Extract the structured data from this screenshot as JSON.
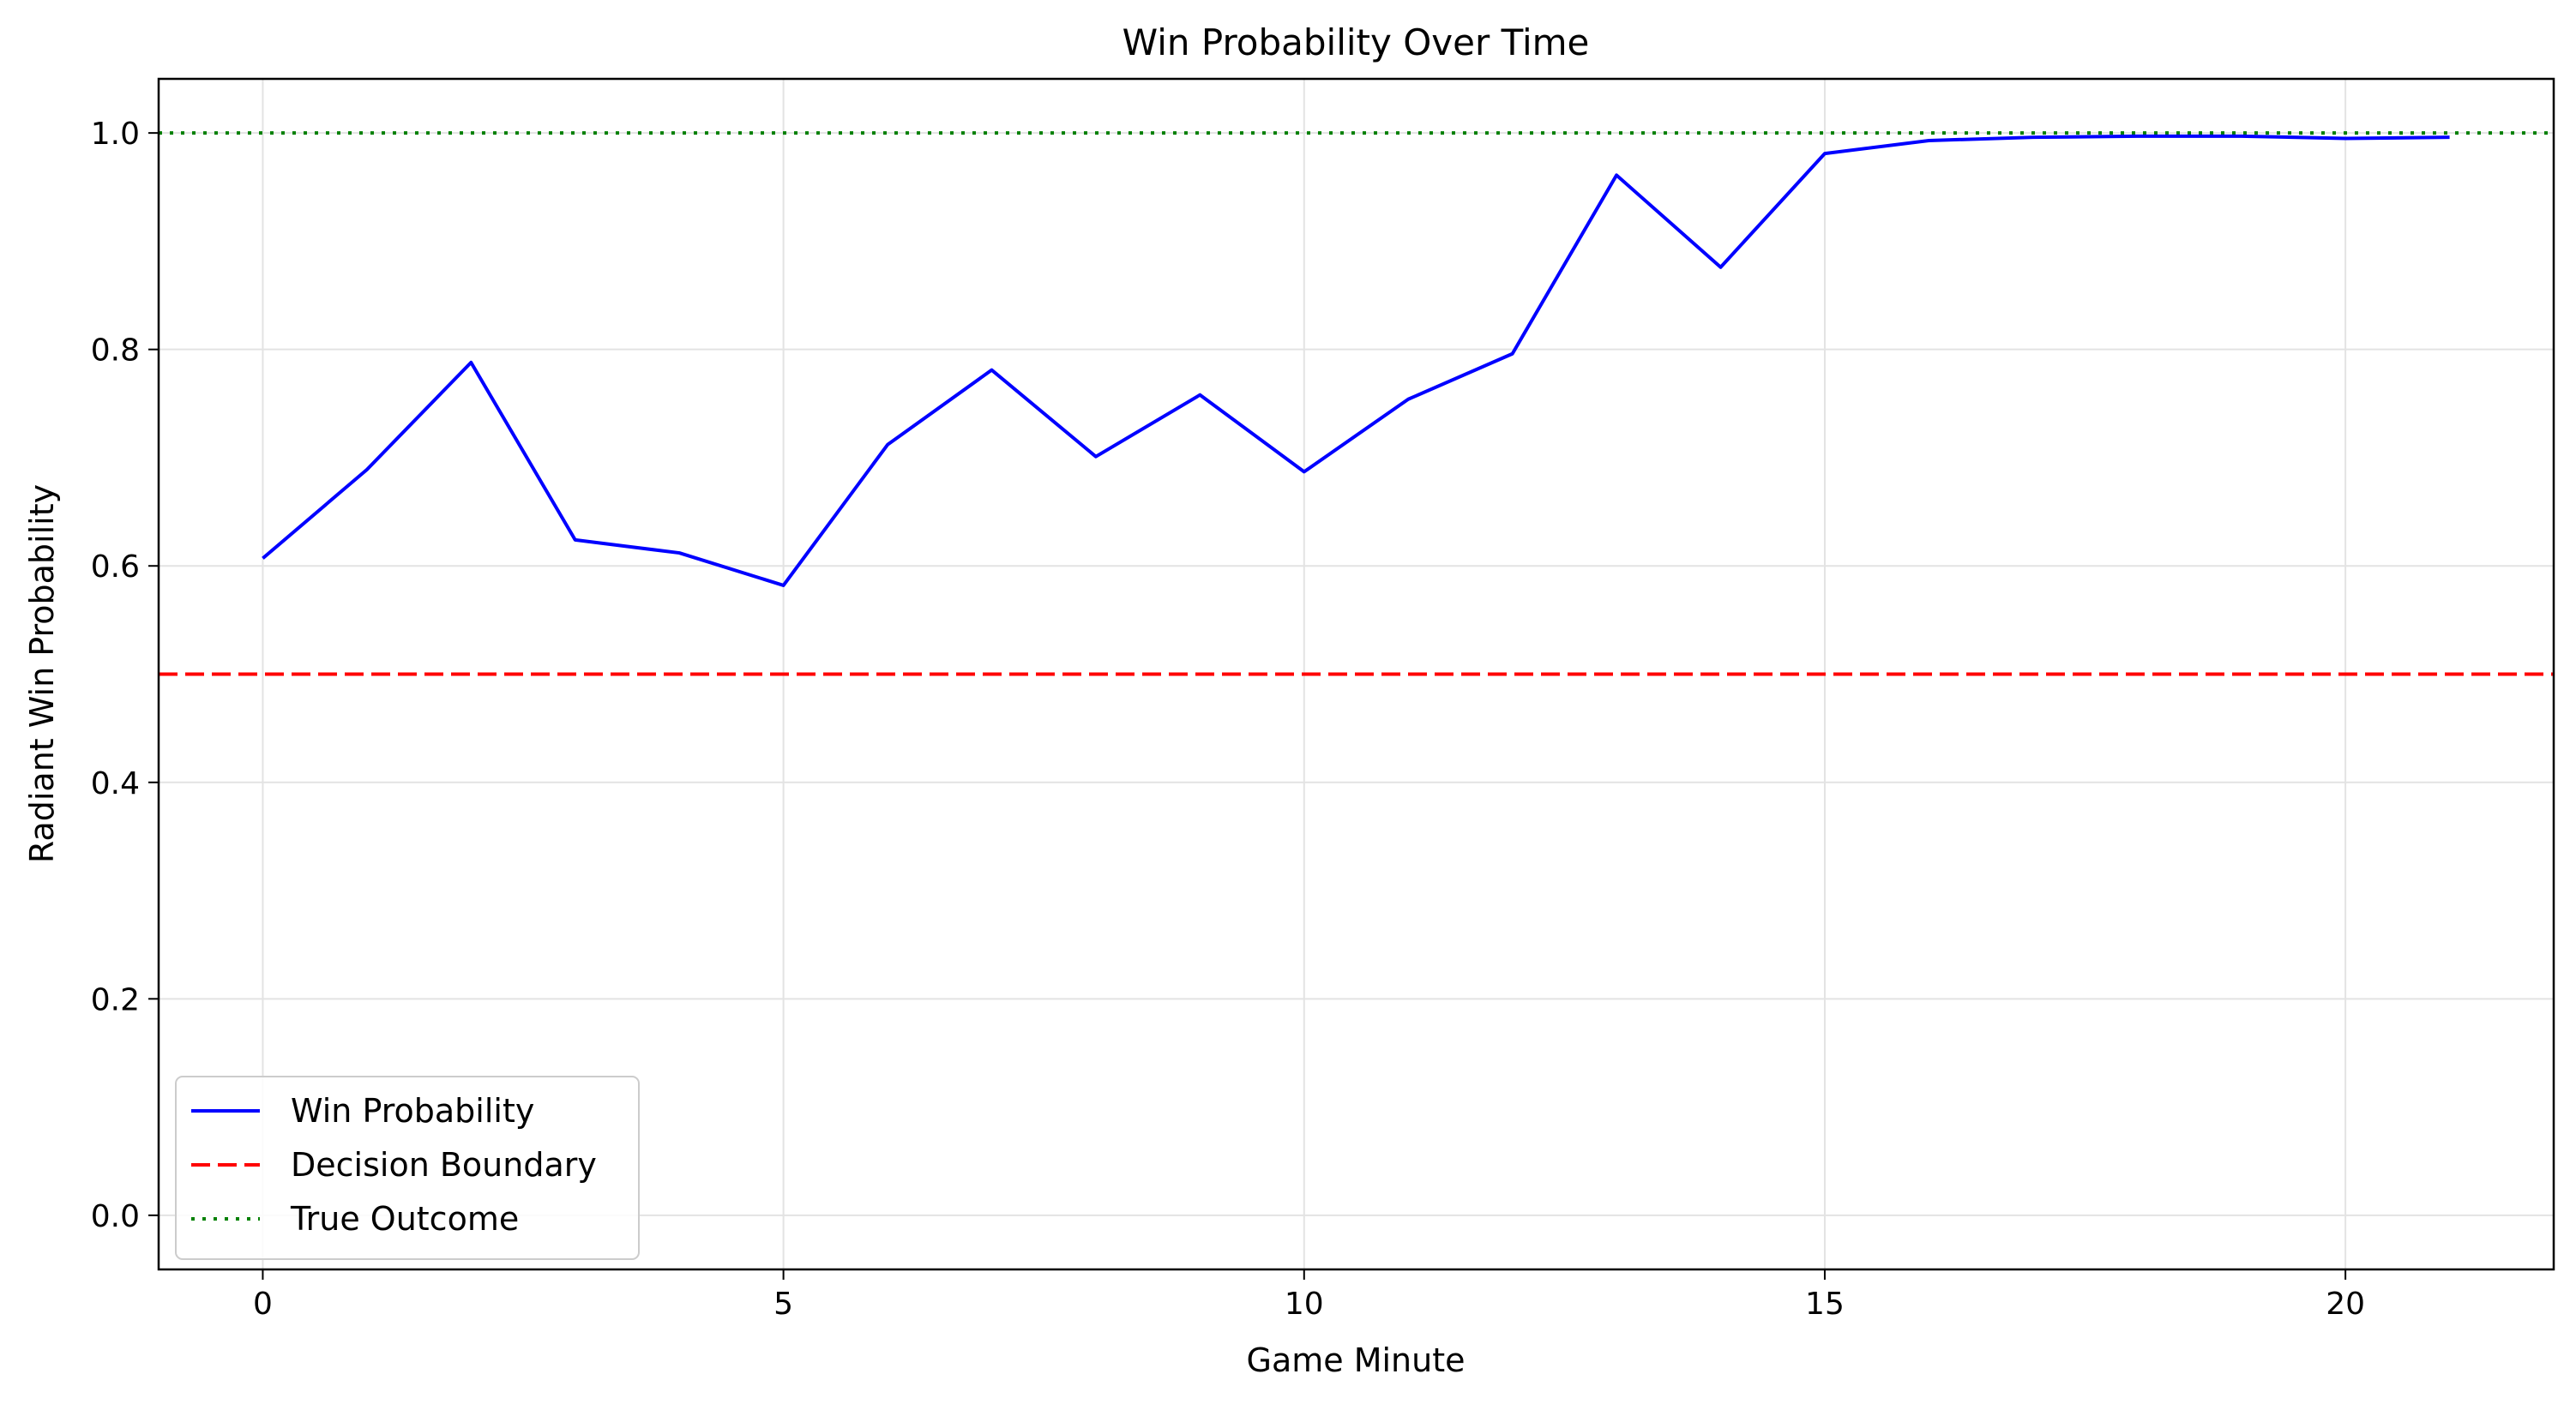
{
  "chart_data": {
    "type": "line",
    "title": "Win Probability Over Time",
    "xlabel": "Game Minute",
    "ylabel": "Radiant Win Probability",
    "xlim": [
      -1,
      22
    ],
    "ylim": [
      -0.05,
      1.05
    ],
    "xticks": [
      0,
      5,
      10,
      15,
      20
    ],
    "yticks": [
      0.0,
      0.2,
      0.4,
      0.6,
      0.8,
      1.0
    ],
    "ytick_labels": [
      "0.0",
      "0.2",
      "0.4",
      "0.6",
      "0.8",
      "1.0"
    ],
    "grid": true,
    "legend_position": "lower-left",
    "series": [
      {
        "name": "Win Probability",
        "style": "solid",
        "color": "#0000ff",
        "x": [
          0,
          1,
          2,
          3,
          4,
          5,
          6,
          7,
          8,
          9,
          10,
          11,
          12,
          13,
          14,
          15,
          16,
          17,
          18,
          19,
          20,
          21
        ],
        "values": [
          0.607,
          0.689,
          0.788,
          0.624,
          0.612,
          0.582,
          0.712,
          0.781,
          0.701,
          0.758,
          0.687,
          0.754,
          0.796,
          0.961,
          0.876,
          0.981,
          0.993,
          0.996,
          0.997,
          0.997,
          0.995,
          0.996
        ]
      }
    ],
    "reference_lines": [
      {
        "name": "Decision Boundary",
        "y": 0.5,
        "style": "dashed",
        "color": "#ff0000"
      },
      {
        "name": "True Outcome",
        "y": 1.0,
        "style": "dotted",
        "color": "#008000"
      }
    ]
  }
}
